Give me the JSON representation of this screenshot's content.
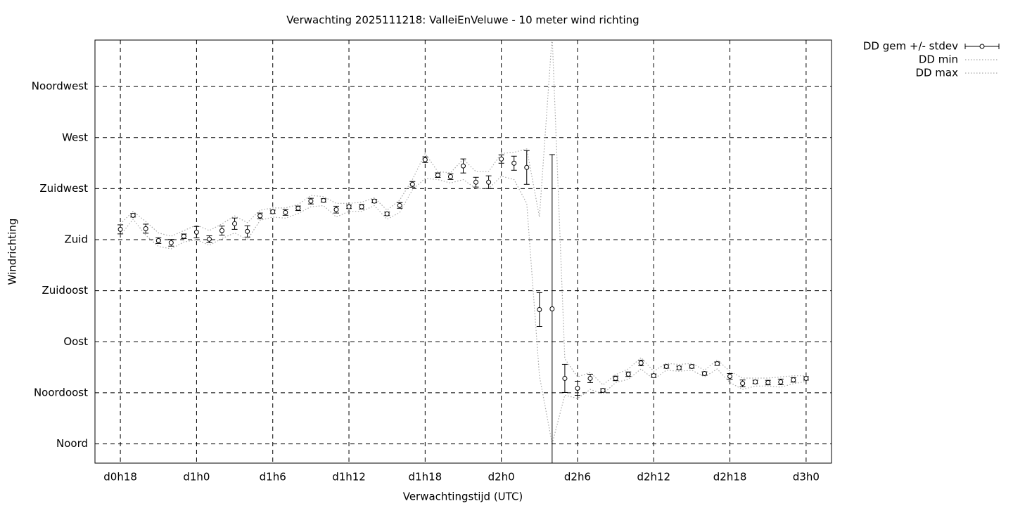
{
  "chart_data": {
    "type": "errorbar",
    "title": "Verwachting 2025111218: ValleiEnVeluwe - 10 meter wind richting",
    "x_label": "Verwachtingstijd (UTC)",
    "y_label": "Windrichting",
    "xlim": [
      16,
      74
    ],
    "ylim": [
      -17,
      356
    ],
    "xticks": [
      {
        "value": 18,
        "label": "d0h18"
      },
      {
        "value": 24,
        "label": "d1h0"
      },
      {
        "value": 30,
        "label": "d1h6"
      },
      {
        "value": 36,
        "label": "d1h12"
      },
      {
        "value": 42,
        "label": "d1h18"
      },
      {
        "value": 48,
        "label": "d2h0"
      },
      {
        "value": 54,
        "label": "d2h6"
      },
      {
        "value": 60,
        "label": "d2h12"
      },
      {
        "value": 66,
        "label": "d2h18"
      },
      {
        "value": 72,
        "label": "d3h0"
      }
    ],
    "yticks": [
      {
        "value": 0,
        "label": "Noord"
      },
      {
        "value": 45,
        "label": "Noordoost"
      },
      {
        "value": 90,
        "label": "Oost"
      },
      {
        "value": 135,
        "label": "Zuidoost"
      },
      {
        "value": 180,
        "label": "Zuid"
      },
      {
        "value": 225,
        "label": "Zuidwest"
      },
      {
        "value": 270,
        "label": "West"
      },
      {
        "value": 315,
        "label": "Noordwest"
      }
    ],
    "grid": true,
    "legend": "outside-top-right",
    "x": [
      18,
      19,
      20,
      21,
      22,
      23,
      24,
      25,
      26,
      27,
      28,
      29,
      30,
      31,
      32,
      33,
      34,
      35,
      36,
      37,
      38,
      39,
      40,
      41,
      42,
      43,
      44,
      45,
      46,
      47,
      48,
      49,
      50,
      51,
      52,
      53,
      54,
      55,
      56,
      57,
      58,
      59,
      60,
      61,
      62,
      63,
      64,
      65,
      66,
      67,
      68,
      69,
      70,
      71,
      72
    ],
    "series": [
      {
        "name": "DD gem +/- stdev",
        "color": "#000000",
        "values": [
          189.1,
          201.5,
          189.7,
          179.2,
          177.3,
          183,
          186.6,
          180.4,
          188,
          194.1,
          187.3,
          201,
          204.6,
          204,
          207.7,
          214,
          214.6,
          206.5,
          209,
          209,
          214,
          202.8,
          210.2,
          228.8,
          250.5,
          236.9,
          235.6,
          245,
          230.7,
          230.7,
          251.1,
          247.4,
          243.7,
          118.4,
          119,
          57.7,
          49,
          57.7,
          47.1,
          57.7,
          61.4,
          71.3,
          60.1,
          68.2,
          67,
          68.2,
          62,
          70.7,
          59.5,
          53.3,
          54.6,
          54,
          54.6,
          56.4,
          57.7
        ],
        "errors": [
          4,
          1.5,
          4,
          2.5,
          3,
          2,
          5,
          3,
          4,
          5,
          5,
          2.5,
          1.5,
          2.5,
          2,
          2.5,
          1.5,
          3,
          1.5,
          2,
          1.5,
          1.5,
          2.5,
          2.5,
          2.5,
          2,
          2.5,
          6.2,
          4.3,
          5.6,
          3.7,
          6.2,
          14.9,
          14.9,
          136,
          12.4,
          6.2,
          3.7,
          1.5,
          2,
          2,
          2.5,
          1.5,
          1.5,
          1.5,
          1.5,
          1.5,
          1.5,
          2.5,
          3,
          1.5,
          2,
          2.5,
          2,
          1.5
        ]
      },
      {
        "name": "DD min",
        "color": "#a8a8a8",
        "values": [
          184,
          198,
          184,
          174,
          172,
          178,
          180,
          175,
          181,
          186,
          180,
          197,
          200,
          199,
          203,
          209,
          210,
          200,
          205,
          205,
          210,
          198,
          204,
          224,
          234,
          233,
          230,
          233,
          225,
          225,
          236,
          233,
          212,
          60,
          0,
          43,
          40,
          48,
          44,
          54,
          57,
          66,
          57,
          65,
          64,
          65,
          59,
          66,
          54,
          48,
          51,
          51,
          50,
          53,
          55
        ]
      },
      {
        "name": "DD max",
        "color": "#a8a8a8",
        "values": [
          194,
          205,
          196,
          186,
          183,
          188,
          193,
          188,
          194,
          201,
          195,
          206,
          208,
          208,
          211,
          219,
          218,
          212,
          212,
          213,
          217,
          206,
          215,
          233,
          256,
          240,
          239,
          251,
          240,
          240,
          256,
          257,
          260,
          200,
          360,
          75,
          59,
          63,
          52,
          61,
          66,
          76,
          64,
          71,
          70,
          71,
          65,
          74,
          64,
          58,
          58,
          58,
          59,
          60,
          60
        ]
      }
    ]
  }
}
